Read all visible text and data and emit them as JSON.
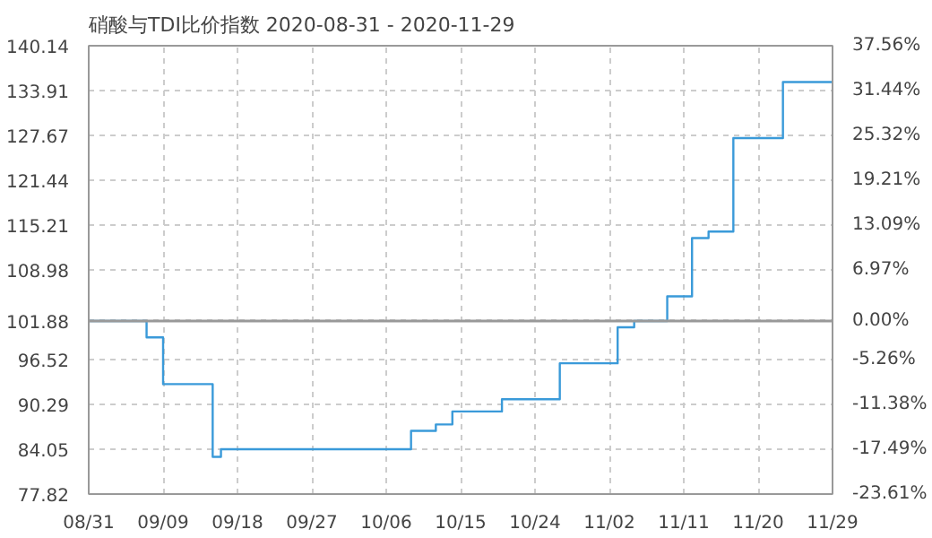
{
  "chart_data": {
    "type": "step",
    "title": "硝酸与TDI比价指数 2020-08-31 - 2020-11-29",
    "x": [
      "2020-08-31",
      "2020-09-06",
      "2020-09-07",
      "2020-09-08",
      "2020-09-09",
      "2020-09-13",
      "2020-09-15",
      "2020-09-16",
      "2020-10-08",
      "2020-10-09",
      "2020-10-11",
      "2020-10-12",
      "2020-10-13",
      "2020-10-14",
      "2020-10-19",
      "2020-10-20",
      "2020-10-25",
      "2020-10-27",
      "2020-11-01",
      "2020-11-03",
      "2020-11-05",
      "2020-11-08",
      "2020-11-09",
      "2020-11-10",
      "2020-11-12",
      "2020-11-14",
      "2020-11-15",
      "2020-11-17",
      "2020-11-21",
      "2020-11-23",
      "2020-11-29"
    ],
    "series": [
      {
        "color": "#3a9ad9",
        "values": [
          101.88,
          101.88,
          99.6,
          99.6,
          93.1,
          93.1,
          83.0,
          84.05,
          84.05,
          86.6,
          86.6,
          87.5,
          87.5,
          89.3,
          89.3,
          91.0,
          91.0,
          96.0,
          96.0,
          101.0,
          101.88,
          101.88,
          105.3,
          105.3,
          113.4,
          114.3,
          114.3,
          127.3,
          127.3,
          135.1,
          135.1
        ]
      }
    ],
    "xlim": [
      "2020-08-31",
      "2020-11-29"
    ],
    "xticks": [
      {
        "value": "2020-08-31",
        "label": "08/31"
      },
      {
        "value": "2020-09-09",
        "label": "09/09"
      },
      {
        "value": "2020-09-18",
        "label": "09/18"
      },
      {
        "value": "2020-09-27",
        "label": "09/27"
      },
      {
        "value": "2020-10-06",
        "label": "10/06"
      },
      {
        "value": "2020-10-15",
        "label": "10/15"
      },
      {
        "value": "2020-10-24",
        "label": "10/24"
      },
      {
        "value": "2020-11-02",
        "label": "11/02"
      },
      {
        "value": "2020-11-11",
        "label": "11/11"
      },
      {
        "value": "2020-11-20",
        "label": "11/20"
      },
      {
        "value": "2020-11-29",
        "label": "11/29"
      }
    ],
    "ylim": [
      77.82,
      140.14
    ],
    "yticks": [
      77.82,
      84.05,
      90.29,
      96.52,
      101.88,
      108.98,
      115.21,
      121.44,
      127.67,
      133.91,
      140.14
    ],
    "y2lim": [
      -23.61,
      37.56
    ],
    "y2ticks": [
      {
        "value": -23.61,
        "label": "-23.61%"
      },
      {
        "value": -17.49,
        "label": "-17.49%"
      },
      {
        "value": -11.38,
        "label": "-11.38%"
      },
      {
        "value": -5.26,
        "label": "-5.26%"
      },
      {
        "value": 0,
        "label": "0.00%"
      },
      {
        "value": 6.97,
        "label": "6.97%"
      },
      {
        "value": 13.09,
        "label": "13.09%"
      },
      {
        "value": 19.21,
        "label": "19.21%"
      },
      {
        "value": 25.32,
        "label": "25.32%"
      },
      {
        "value": 31.44,
        "label": "31.44%"
      },
      {
        "value": 37.56,
        "label": "37.56%"
      }
    ],
    "ref_lines": [
      {
        "axis": "y",
        "value": 101.88,
        "color": "#999999"
      }
    ],
    "grid": true,
    "marker": "none",
    "line_style": "solid"
  }
}
